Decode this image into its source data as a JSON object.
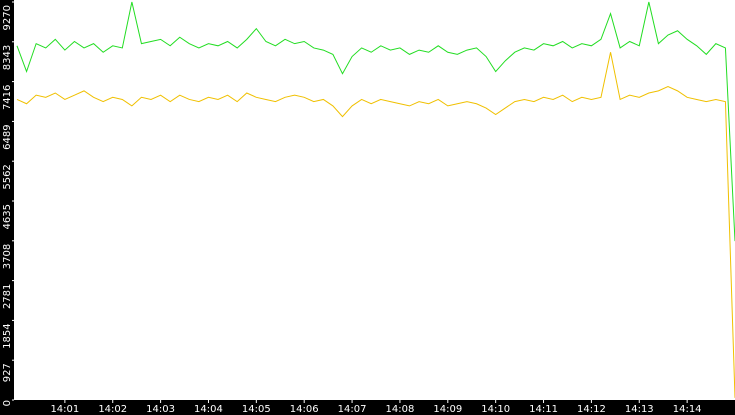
{
  "chart_data": {
    "type": "line",
    "x": [
      0,
      0.2,
      0.4,
      0.6,
      0.8,
      1,
      1.2,
      1.4,
      1.6,
      1.8,
      2,
      2.2,
      2.4,
      2.6,
      2.8,
      3,
      3.2,
      3.4,
      3.6,
      3.8,
      4,
      4.2,
      4.4,
      4.6,
      4.8,
      5,
      5.2,
      5.4,
      5.6,
      5.8,
      6,
      6.2,
      6.4,
      6.6,
      6.8,
      7,
      7.2,
      7.4,
      7.6,
      7.8,
      8,
      8.2,
      8.4,
      8.6,
      8.8,
      9,
      9.2,
      9.4,
      9.6,
      9.8,
      10,
      10.2,
      10.4,
      10.6,
      10.8,
      11,
      11.2,
      11.4,
      11.6,
      11.8,
      12,
      12.2,
      12.4,
      12.6,
      12.8,
      13,
      13.2,
      13.4,
      13.6,
      13.8,
      14,
      14.2,
      14.4,
      14.6,
      14.8,
      15
    ],
    "series": [
      {
        "color": "#22dd22",
        "values": [
          8250,
          7650,
          8300,
          8200,
          8400,
          8150,
          8350,
          8200,
          8300,
          8100,
          8250,
          8200,
          9270,
          8300,
          8350,
          8400,
          8250,
          8450,
          8300,
          8200,
          8300,
          8250,
          8350,
          8200,
          8400,
          8650,
          8350,
          8250,
          8400,
          8300,
          8350,
          8200,
          8150,
          8050,
          7600,
          8000,
          8200,
          8100,
          8250,
          8150,
          8200,
          8050,
          8150,
          8100,
          8250,
          8100,
          8050,
          8150,
          8200,
          8000,
          7650,
          7900,
          8100,
          8200,
          8150,
          8300,
          8250,
          8350,
          8200,
          8300,
          8250,
          8400,
          9000,
          8200,
          8350,
          8250,
          9270,
          8300,
          8500,
          8600,
          8400,
          8250,
          8050,
          8300,
          8200,
          3700
        ]
      },
      {
        "color": "#f0c000",
        "values": [
          7000,
          6900,
          7100,
          7050,
          7150,
          7000,
          7100,
          7200,
          7050,
          6950,
          7050,
          7000,
          6850,
          7050,
          7000,
          7100,
          6950,
          7100,
          7000,
          6950,
          7050,
          7000,
          7100,
          6950,
          7150,
          7050,
          7000,
          6950,
          7050,
          7100,
          7050,
          6950,
          7000,
          6850,
          6600,
          6850,
          7000,
          6900,
          7000,
          6950,
          6900,
          6850,
          6950,
          6900,
          7000,
          6850,
          6900,
          6950,
          6900,
          6800,
          6650,
          6800,
          6950,
          7000,
          6950,
          7050,
          7000,
          7100,
          6950,
          7050,
          7000,
          7050,
          8100,
          7000,
          7100,
          7050,
          7150,
          7200,
          7300,
          7200,
          7050,
          7000,
          6950,
          7000,
          6950,
          50
        ]
      }
    ],
    "xlim": [
      0,
      15
    ],
    "xticks": [
      {
        "value": 1,
        "label": "14:01"
      },
      {
        "value": 2,
        "label": "14:02"
      },
      {
        "value": 3,
        "label": "14:03"
      },
      {
        "value": 4,
        "label": "14:04"
      },
      {
        "value": 5,
        "label": "14:05"
      },
      {
        "value": 6,
        "label": "14:06"
      },
      {
        "value": 7,
        "label": "14:07"
      },
      {
        "value": 8,
        "label": "14:08"
      },
      {
        "value": 9,
        "label": "14:09"
      },
      {
        "value": 10,
        "label": "14:10"
      },
      {
        "value": 11,
        "label": "14:11"
      },
      {
        "value": 12,
        "label": "14:12"
      },
      {
        "value": 13,
        "label": "14:13"
      },
      {
        "value": 14,
        "label": "14:14"
      }
    ],
    "ylim": [
      0,
      9270
    ],
    "yticks": [
      0,
      927,
      1854,
      2781,
      3708,
      4635,
      5562,
      6489,
      7416,
      8343,
      9270
    ]
  }
}
